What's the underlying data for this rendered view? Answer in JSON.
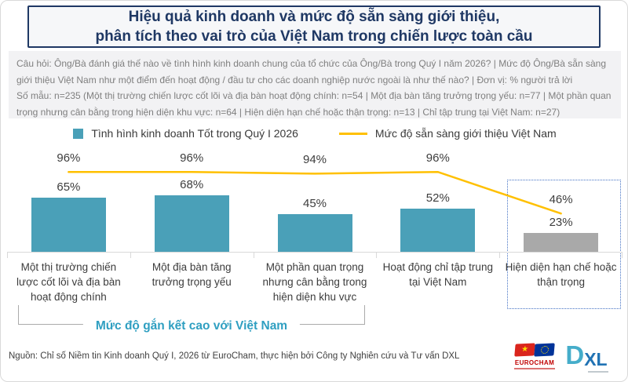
{
  "title": {
    "line1": "Hiệu quả kinh doanh và mức độ sẵn sàng giới thiệu,",
    "line2": "phân tích theo vai trò của Việt Nam trong chiến lược toàn cầu"
  },
  "meta": {
    "question": "Câu hỏi: Ông/Bà đánh giá thế nào về tình hình kinh doanh chung của tổ chức của Ông/Bà trong Quý I năm 2026? | Mức độ Ông/Bà sẵn sàng giới thiệu Việt Nam như một điểm đến hoạt động / đầu tư cho các doanh nghiệp nước ngoài là như thế nào? | Đơn vị: % người trả lời",
    "sample": "Số mẫu: n=235 (Một thị trường chiến lược cốt lõi và địa bàn hoạt động chính: n=54 | Một địa bàn tăng trưởng trọng yếu: n=77 | Một phần quan trọng nhưng cân bằng trong hiện diện khu vực: n=64 | Hiện diện hạn chế hoặc thận trọng: n=13 | Chỉ tập trung tại Việt Nam: n=27)"
  },
  "legend": {
    "bar_label": "Tình hình kinh doanh Tốt trong Quý I 2026",
    "line_label": "Mức độ sẵn sàng giới thiệu Việt Nam"
  },
  "chart_data": {
    "type": "bar",
    "categories": [
      "Một thị trường chiến lược cốt lõi và địa bàn hoạt động chính",
      "Một địa bàn tăng trưởng trọng yếu",
      "Một phần quan trọng nhưng cân bằng trong hiện diện khu vực",
      "Hoạt động chỉ tập trung tại Việt Nam",
      "Hiện diện hạn chế hoặc thận trọng"
    ],
    "series": [
      {
        "name": "Tình hình kinh doanh Tốt trong Quý I 2026",
        "type": "bar",
        "values": [
          65,
          68,
          45,
          52,
          23
        ]
      },
      {
        "name": "Mức độ sẵn sàng giới thiệu Việt Nam",
        "type": "line",
        "values": [
          96,
          96,
          94,
          96,
          46
        ]
      }
    ],
    "value_suffix": "%",
    "ylim": [
      0,
      120
    ],
    "grid": false,
    "legend_position": "top",
    "highlight_last_category": true,
    "colors": {
      "bar": "#4aa0b8",
      "bar_muted": "#a9a9a9",
      "line": "#ffc000",
      "highlight_border": "#4472c4"
    }
  },
  "bracket": {
    "label": "Mức độ gắn kết cao với Việt Nam"
  },
  "footer": {
    "source": "Nguồn: Chỉ số Niềm tin Kinh doanh Quý I, 2026 từ EuroCham, thực hiện bởi Công ty Nghiên cứu và Tư vấn DXL",
    "logo_eurocham": "EUROCHAM",
    "logo_dxl_d": "D",
    "logo_dxl_xl": "XL",
    "flag_vn_star": "★"
  }
}
